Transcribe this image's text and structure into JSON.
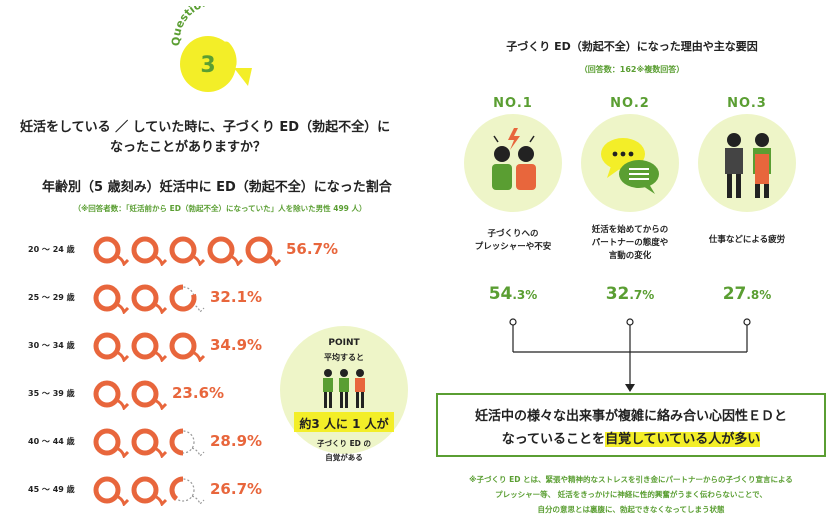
{
  "badge": {
    "word": "Question",
    "number": "3"
  },
  "question": {
    "line1": "妊活をしている ／ していた時に、子づくり ED（勃起不全）に",
    "line2": "なったことがありますか？"
  },
  "age_section": {
    "title": "年齢別（5 歳刻み）妊活中に ED（勃起不全）になった割合",
    "note": "（※回答者数：「妊活前から ED（勃起不全）になっていた」人を除いた男性 499 人）"
  },
  "point": {
    "title": "POINT",
    "line2": "平均すると",
    "highlight": "約3 人に 1 人が",
    "line3": "子づくり ED の",
    "line4": "自覚がある"
  },
  "reasons_section": {
    "title": "子づくり ED（勃起不全）になった理由や主な要因",
    "note": "（回答数：162※複数回答）"
  },
  "ranks": [
    {
      "label": "NO.1",
      "icon": "couple-stress-icon",
      "reason_l1": "子づくりへの",
      "reason_l2": "プレッシャーや不安",
      "reason_l3": "",
      "pct_num": "54",
      "pct_dec": ".3%"
    },
    {
      "label": "NO.2",
      "icon": "speech-bubbles-icon",
      "reason_l1": "妊活を始めてからの",
      "reason_l2": "パートナーの態度や",
      "reason_l3": "言動の変化",
      "pct_num": "32",
      "pct_dec": ".7%"
    },
    {
      "label": "NO.3",
      "icon": "worker-fatigue-icon",
      "reason_l1": "仕事などによる疲労",
      "reason_l2": "",
      "reason_l3": "",
      "pct_num": "27",
      "pct_dec": ".8%"
    }
  ],
  "conclusion": {
    "line1": "妊活中の様々な出来事が複雑に絡み合い心因性ＥＤと",
    "line2_pre": "なっていることを",
    "line2_hl": "自覚していている人が多い"
  },
  "footnote": {
    "line1": "※子づくり ED とは、緊張や精神的なストレスを引き金にパートナーからの子づくり宣言による",
    "line2": "プレッシャー等、 妊活をきっかけに神経に性的興奮がうまく伝わらないことで、",
    "line3": "自分の意思とは裏腹に、勃起できなくなってしまう状態"
  },
  "colors": {
    "orange": "#e8663c",
    "green": "#5a9e32",
    "yellow": "#f3ee28",
    "pale_green": "#eef5c8"
  },
  "chart_data": {
    "type": "bar",
    "title": "年齢別（5 歳刻み）妊活中に ED（勃起不全）になった割合",
    "categories": [
      "20 ～ 24 歳",
      "25 ～ 29 歳",
      "30 ～ 34 歳",
      "35 ～ 39 歳",
      "40 ～ 44 歳",
      "45 ～ 49 歳"
    ],
    "values": [
      56.7,
      32.1,
      34.9,
      23.6,
      28.9,
      26.7
    ],
    "labels": [
      "56.7%",
      "32.1%",
      "34.9%",
      "23.6%",
      "28.9%",
      "26.7%"
    ],
    "unit": "%",
    "icons_total": 5,
    "icons_filled": [
      5,
      2.8,
      3,
      2,
      2.5,
      2.4
    ]
  }
}
